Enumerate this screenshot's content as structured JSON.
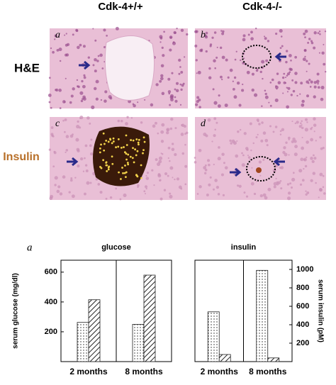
{
  "figure": {
    "columns": [
      "Cdk-4+/+",
      "Cdk-4-/-"
    ],
    "rows": [
      "H&E",
      "Insulin"
    ],
    "panels": [
      "a",
      "b",
      "c",
      "d"
    ],
    "chart_label": "a"
  },
  "chart_data": [
    {
      "type": "bar",
      "title": "glucose",
      "y_label": "serum glucose (mg/dl)",
      "categories": [
        "2 months",
        "8 months"
      ],
      "series": [
        {
          "pattern": "dots",
          "color": "#222222",
          "values": [
            263,
            250
          ]
        },
        {
          "pattern": "hatch",
          "color": "#222222",
          "values": [
            415,
            580
          ]
        }
      ],
      "ylim": [
        0,
        680
      ],
      "yticks": [
        200,
        400,
        600
      ],
      "axis_side": "left"
    },
    {
      "type": "bar",
      "title": "insulin",
      "y_label": "serum insulin (pM)",
      "categories": [
        "2 months",
        "8 months"
      ],
      "series": [
        {
          "pattern": "dots",
          "color": "#222222",
          "values": [
            540,
            990
          ]
        },
        {
          "pattern": "hatch",
          "color": "#222222",
          "values": [
            77,
            40
          ]
        }
      ],
      "ylim": [
        0,
        1100
      ],
      "yticks": [
        200,
        400,
        600,
        800,
        1000
      ],
      "axis_side": "right"
    }
  ]
}
